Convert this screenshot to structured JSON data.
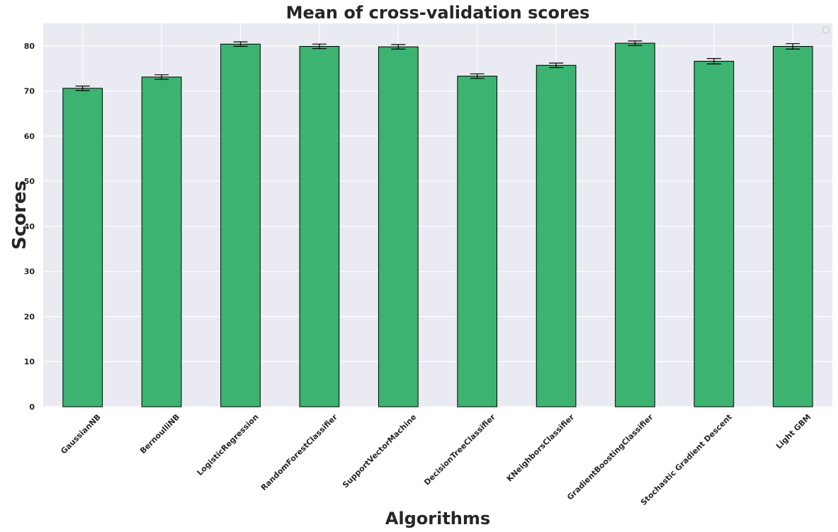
{
  "chart_data": {
    "type": "bar",
    "title": "Mean of cross-validation scores",
    "xlabel": "Algorithms",
    "ylabel": "Scores",
    "categories": [
      "GaussianNB",
      "BernoulliNB",
      "LogisticRegression",
      "RandomForestClassifier",
      "SupportVectorMachine",
      "DecisionTreeClassifier",
      "KNeighborsClassifier",
      "GradientBoostingClassifier",
      "Stochastic Gradient Descent",
      "Light GBM"
    ],
    "values": [
      70.6,
      73.1,
      80.4,
      79.9,
      79.8,
      73.3,
      75.7,
      80.6,
      76.6,
      79.9
    ],
    "errors": [
      0.5,
      0.5,
      0.5,
      0.5,
      0.5,
      0.5,
      0.5,
      0.5,
      0.6,
      0.6
    ],
    "ylim": [
      0,
      85
    ],
    "yticks": [
      0,
      10,
      20,
      30,
      40,
      50,
      60,
      70,
      80
    ],
    "grid": true,
    "legend": "top-right (empty)",
    "colors": {
      "bar": "#3cb371",
      "background": "#eaeaf2",
      "grid": "#ffffff",
      "edge": "#000000"
    }
  }
}
